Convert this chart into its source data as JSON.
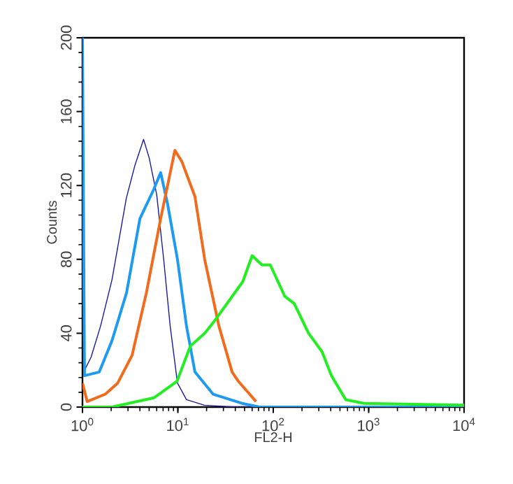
{
  "chart_data": {
    "type": "line",
    "xlabel": "FL2-H",
    "ylabel": "Counts",
    "log": "x",
    "xlim": [
      1,
      10000
    ],
    "ylim": [
      0,
      200
    ],
    "xticks": [
      {
        "value": 1,
        "label": "10$^{0}$"
      },
      {
        "value": 10,
        "label": "10$^{1}$"
      },
      {
        "value": 100,
        "label": "10$^{2}$"
      },
      {
        "value": 1000,
        "label": "10$^{3}$"
      },
      {
        "value": 10000,
        "label": "10$^{4}$"
      }
    ],
    "yticks": [
      0,
      40,
      80,
      120,
      160,
      200
    ],
    "series": [
      {
        "color": "#1a1aa0",
        "x": [
          1.03,
          1.23,
          1.55,
          2.04,
          2.88,
          3.55,
          4.37,
          5.0,
          6.0,
          7.1,
          8.3,
          9.9,
          12.3,
          19,
          40,
          10000
        ],
        "values": [
          19,
          27,
          44,
          69,
          113,
          131,
          145,
          135,
          115,
          80,
          44,
          13,
          4,
          1,
          0,
          0
        ]
      },
      {
        "color": "#1e9bf0",
        "x": [
          1,
          1.05,
          1.5,
          2.04,
          2.9,
          4.0,
          5.6,
          6.6,
          7.8,
          9.9,
          12.3,
          15.1,
          23.4,
          47,
          72,
          10000
        ],
        "values": [
          200,
          17,
          19,
          36,
          62,
          102,
          118,
          127,
          110,
          80,
          44,
          19,
          7,
          2,
          0,
          0
        ]
      },
      {
        "color": "#f26a1b",
        "x": [
          1,
          1.12,
          1.74,
          2.34,
          3.31,
          4.68,
          6.6,
          9.3,
          11,
          15.1,
          19.1,
          26.9,
          37,
          43,
          66
        ],
        "values": [
          13,
          3,
          7,
          13,
          28,
          62,
          102,
          139,
          133,
          114,
          80,
          44,
          19,
          14,
          3
        ]
      },
      {
        "color": "#22ee22",
        "x": [
          1,
          2.04,
          5.6,
          9.8,
          13.5,
          19.1,
          24.5,
          48,
          60,
          76,
          93,
          132,
          166,
          234,
          324,
          407,
          575,
          891,
          10000
        ],
        "values": [
          0,
          0,
          5,
          14,
          33,
          40,
          47,
          68,
          82,
          77,
          77,
          60,
          56,
          40,
          30,
          17,
          4,
          2,
          1
        ]
      }
    ]
  }
}
